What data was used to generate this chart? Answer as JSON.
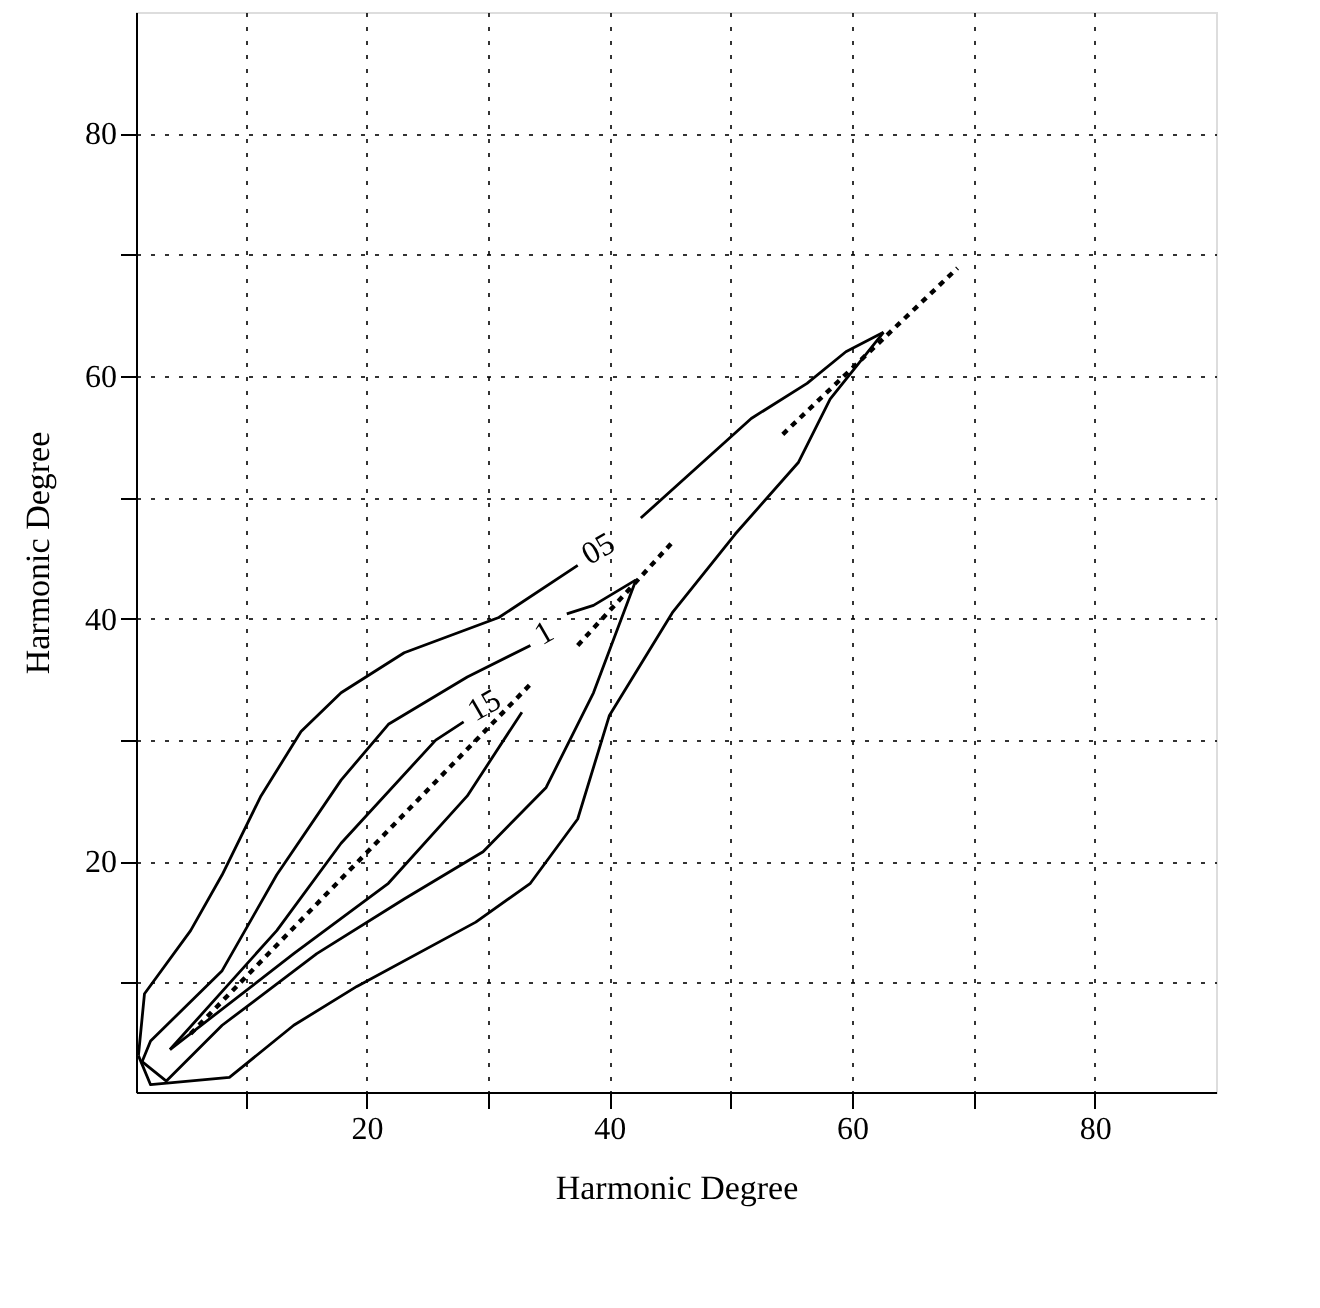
{
  "chart_data": {
    "type": "line",
    "xlabel": "Harmonic Degree",
    "ylabel": "Harmonic Degree",
    "xlim": [
      1,
      90
    ],
    "ylim": [
      1,
      90
    ],
    "xticks": [
      {
        "value": 10,
        "label": null
      },
      20,
      {
        "value": 30,
        "label": null
      },
      40,
      {
        "value": 50,
        "label": null
      },
      60,
      {
        "value": 70,
        "label": null
      },
      80
    ],
    "yticks": [
      {
        "value": 10,
        "label": null
      },
      20,
      {
        "value": 30,
        "label": null
      },
      40,
      {
        "value": 50,
        "label": null
      },
      60,
      {
        "value": 70,
        "label": null
      },
      80
    ],
    "grid": true,
    "line_style": "solid",
    "series": [
      {
        "name": "05",
        "color": "#000000",
        "x": [
          1.2,
          1.7,
          5.5,
          8.1,
          11.3,
          14.6,
          17.9,
          23.1,
          30.9,
          37.4
        ],
        "values": [
          4.0,
          9.1,
          14.3,
          18.9,
          25.4,
          30.7,
          33.9,
          37.2,
          40.1,
          44.4
        ]
      },
      {
        "color": "#000000",
        "x": [
          42.6,
          51.7,
          56.3,
          59.5,
          62.6
        ],
        "values": [
          48.3,
          56.5,
          59.4,
          62.0,
          63.6
        ]
      },
      {
        "color": "#000000",
        "x": [
          1.2,
          2.2,
          8.7,
          14.0,
          19.2,
          29.0,
          33.5,
          37.4,
          40.0,
          45.2,
          50.4,
          55.6,
          58.2,
          62.6
        ],
        "values": [
          4.0,
          1.6,
          2.2,
          6.5,
          9.7,
          15.0,
          18.2,
          23.5,
          32.0,
          40.5,
          47.0,
          52.9,
          58.1,
          63.6
        ]
      },
      {
        "name": "1",
        "color": "#000000",
        "x": [
          1.5,
          2.2,
          8.1,
          12.6,
          17.9,
          21.8,
          28.3,
          33.5
        ],
        "values": [
          3.5,
          5.2,
          11.0,
          18.9,
          26.7,
          31.3,
          35.2,
          37.8
        ]
      },
      {
        "color": "#000000",
        "x": [
          36.5,
          38.7,
          42.2
        ],
        "values": [
          40.4,
          41.1,
          43.2
        ]
      },
      {
        "color": "#000000",
        "x": [
          1.5,
          3.5,
          8.1,
          15.9,
          23.1,
          29.6,
          34.8,
          38.7,
          42.2
        ],
        "values": [
          3.5,
          1.9,
          6.5,
          12.4,
          16.9,
          20.8,
          26.1,
          33.9,
          43.2
        ]
      },
      {
        "name": "15",
        "color": "#000000",
        "x": [
          3.8,
          12.6,
          17.9,
          25.7,
          28.0
        ],
        "values": [
          4.5,
          14.3,
          21.5,
          30.0,
          31.5
        ]
      },
      {
        "color": "#000000",
        "x": [
          3.8,
          14.0,
          21.8,
          28.3,
          32.8
        ],
        "values": [
          4.5,
          12.4,
          18.2,
          25.4,
          32.3
        ]
      },
      {
        "color": "#000000",
        "line_style": "dotted",
        "x": [
          5.5,
          33.5
        ],
        "values": [
          5.8,
          34.6
        ]
      },
      {
        "color": "#000000",
        "line_style": "dotted",
        "x": [
          37.4,
          45.2
        ],
        "values": [
          37.8,
          46.3
        ]
      },
      {
        "color": "#000000",
        "line_style": "dotted",
        "x": [
          54.3,
          68.7
        ],
        "values": [
          55.2,
          68.9
        ]
      }
    ]
  }
}
